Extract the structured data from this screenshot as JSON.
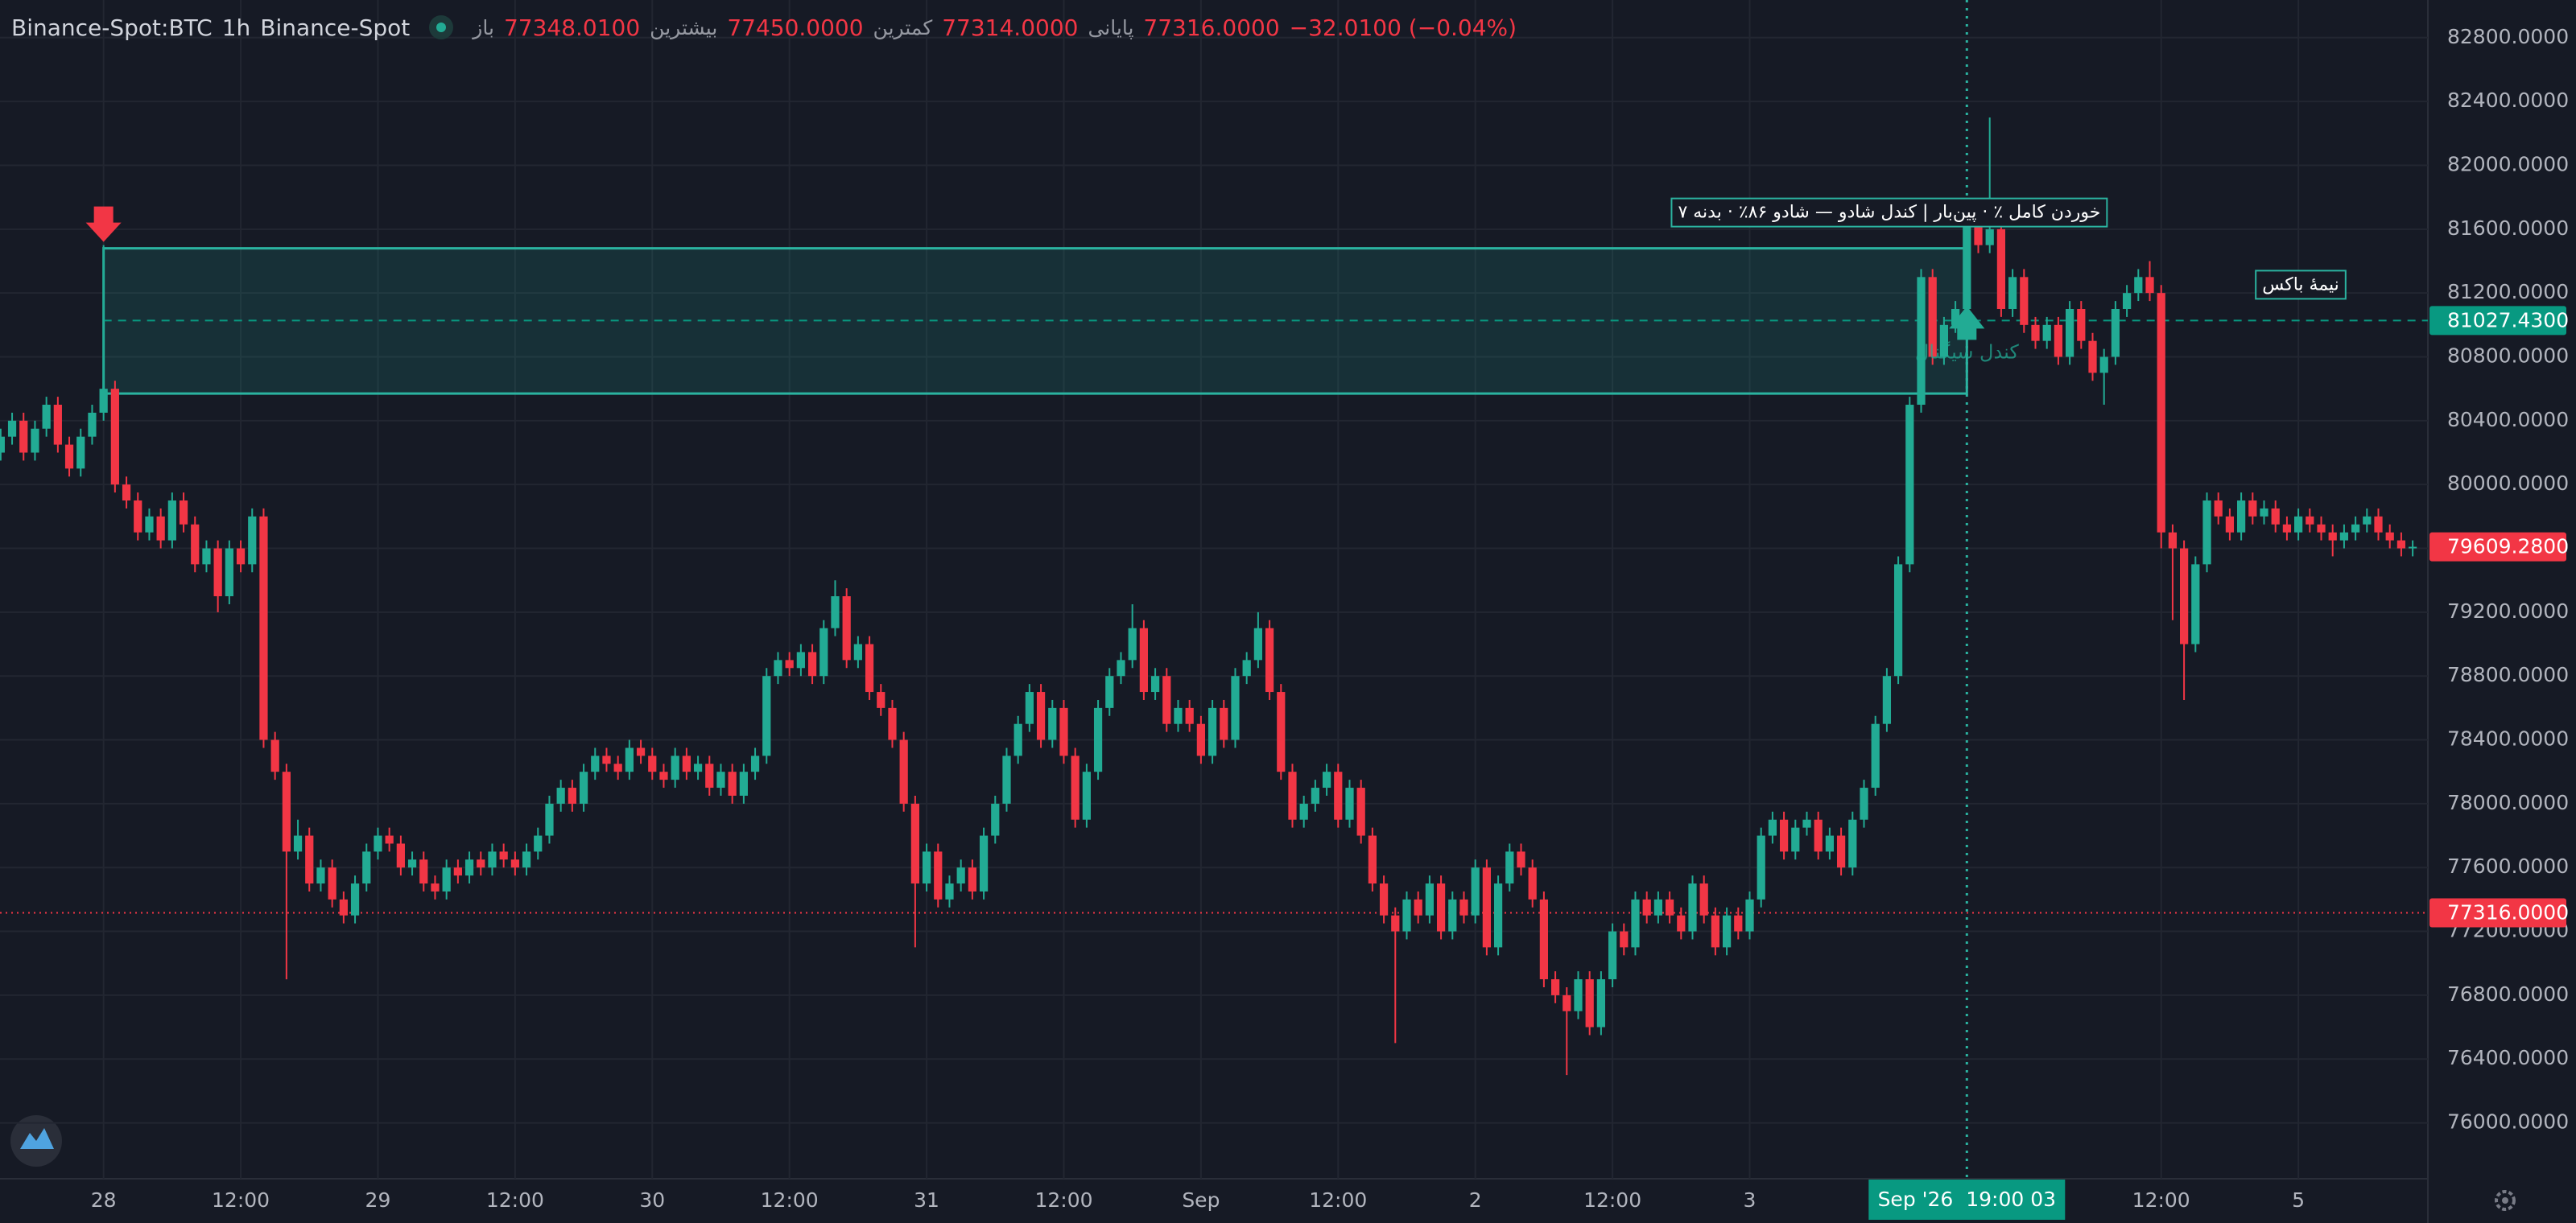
{
  "header": {
    "symbol": "Binance-Spot:BTC",
    "interval": "1h",
    "exchange": "Binance-Spot",
    "open_label": "باز",
    "open": "77348.0100",
    "high_label": "بیشترین",
    "high": "77450.0000",
    "low_label": "کمترین",
    "low": "77314.0000",
    "close_label": "پایانی",
    "close": "77316.0000",
    "change": "−32.0100 (−0.04%)"
  },
  "chart_data": {
    "type": "candlestick",
    "up_color": "#22ab94",
    "down_color": "#f23645",
    "grid": true,
    "ylim": [
      75650,
      83036
    ],
    "yticks": [
      {
        "value": 76000,
        "label": "76000.0000"
      },
      {
        "value": 76400,
        "label": "76400.0000"
      },
      {
        "value": 76800,
        "label": "76800.0000"
      },
      {
        "value": 77200,
        "label": "77200.0000"
      },
      {
        "value": 77600,
        "label": "77600.0000"
      },
      {
        "value": 78000,
        "label": "78000.0000"
      },
      {
        "value": 78400,
        "label": "78400.0000"
      },
      {
        "value": 78800,
        "label": "78800.0000"
      },
      {
        "value": 79200,
        "label": "79200.0000"
      },
      {
        "value": 79600,
        "label": "79600.0000"
      },
      {
        "value": 80000,
        "label": "80000.0000"
      },
      {
        "value": 80400,
        "label": "80400.0000"
      },
      {
        "value": 80800,
        "label": "80800.0000"
      },
      {
        "value": 81200,
        "label": "81200.0000"
      },
      {
        "value": 81600,
        "label": "81600.0000"
      },
      {
        "value": 82000,
        "label": "82000.0000"
      },
      {
        "value": 82400,
        "label": "82400.0000"
      },
      {
        "value": 82800,
        "label": "82800.0000"
      }
    ],
    "xlim": [
      -0.06,
      212.33
    ],
    "xticks": [
      {
        "value": 9,
        "label": "28"
      },
      {
        "value": 21,
        "label": "12:00"
      },
      {
        "value": 33,
        "label": "29"
      },
      {
        "value": 45,
        "label": "12:00"
      },
      {
        "value": 57,
        "label": "30"
      },
      {
        "value": 69,
        "label": "12:00"
      },
      {
        "value": 81,
        "label": "31"
      },
      {
        "value": 93,
        "label": "12:00"
      },
      {
        "value": 105,
        "label": "Sep"
      },
      {
        "value": 117,
        "label": "12:00"
      },
      {
        "value": 129,
        "label": "2"
      },
      {
        "value": 141,
        "label": "12:00"
      },
      {
        "value": 153,
        "label": "3"
      },
      {
        "value": 189,
        "label": "12:00"
      },
      {
        "value": 201,
        "label": "5"
      }
    ],
    "box": {
      "start": 9,
      "end": 172,
      "top": 81480,
      "bottom": 80570,
      "mid": 81027.43,
      "label": "خوردن کامل ٪ · پین‌بار | کندل شادو — شادو ۸۶٪ · بدنه ۷",
      "mid_label": "نیمهٔ باکس",
      "signal_label": "کندل سیگنال"
    },
    "markers": [
      {
        "index": 9,
        "side": "down"
      },
      {
        "index": 172,
        "side": "up"
      }
    ],
    "crosshair": {
      "index": 172,
      "label": "Sep '26  19:00 03"
    },
    "price_labels": [
      {
        "value": 81027.43,
        "label": "81027.4300",
        "color": "#089981",
        "line": "dashed"
      },
      {
        "value": 79609.28,
        "label": "79609.2800",
        "color": "#f23645",
        "line": "none"
      },
      {
        "value": 77316,
        "label": "77316.0000",
        "color": "#f23645",
        "line": "dotted"
      }
    ],
    "ohlc": [
      [
        80200,
        80350,
        80150,
        80300
      ],
      [
        80300,
        80450,
        80250,
        80400
      ],
      [
        80400,
        80450,
        80150,
        80200
      ],
      [
        80200,
        80400,
        80150,
        80350
      ],
      [
        80350,
        80550,
        80300,
        80500
      ],
      [
        80500,
        80550,
        80200,
        80250
      ],
      [
        80250,
        80300,
        80050,
        80100
      ],
      [
        80100,
        80350,
        80050,
        80300
      ],
      [
        80300,
        80500,
        80250,
        80450
      ],
      [
        80450,
        81500,
        80400,
        80600
      ],
      [
        80600,
        80650,
        79950,
        80000
      ],
      [
        80000,
        80050,
        79850,
        79900
      ],
      [
        79900,
        79950,
        79650,
        79700
      ],
      [
        79700,
        79850,
        79650,
        79800
      ],
      [
        79800,
        79850,
        79600,
        79650
      ],
      [
        79650,
        79950,
        79600,
        79900
      ],
      [
        79900,
        79950,
        79700,
        79750
      ],
      [
        79750,
        79800,
        79450,
        79500
      ],
      [
        79500,
        79650,
        79450,
        79600
      ],
      [
        79600,
        79650,
        79200,
        79300
      ],
      [
        79300,
        79650,
        79250,
        79600
      ],
      [
        79600,
        79650,
        79450,
        79500
      ],
      [
        79500,
        79850,
        79450,
        79800
      ],
      [
        79800,
        79850,
        78350,
        78400
      ],
      [
        78400,
        78450,
        78150,
        78200
      ],
      [
        78200,
        78250,
        76900,
        77700
      ],
      [
        77700,
        77900,
        77650,
        77800
      ],
      [
        77800,
        77850,
        77450,
        77500
      ],
      [
        77500,
        77650,
        77450,
        77600
      ],
      [
        77600,
        77650,
        77350,
        77400
      ],
      [
        77400,
        77450,
        77250,
        77300
      ],
      [
        77300,
        77550,
        77250,
        77500
      ],
      [
        77500,
        77750,
        77450,
        77700
      ],
      [
        77700,
        77850,
        77650,
        77800
      ],
      [
        77800,
        77850,
        77700,
        77750
      ],
      [
        77750,
        77800,
        77550,
        77600
      ],
      [
        77600,
        77700,
        77550,
        77650
      ],
      [
        77650,
        77700,
        77450,
        77500
      ],
      [
        77500,
        77550,
        77400,
        77450
      ],
      [
        77450,
        77650,
        77400,
        77600
      ],
      [
        77600,
        77650,
        77500,
        77550
      ],
      [
        77550,
        77700,
        77500,
        77650
      ],
      [
        77650,
        77700,
        77550,
        77600
      ],
      [
        77600,
        77750,
        77550,
        77700
      ],
      [
        77700,
        77750,
        77600,
        77650
      ],
      [
        77650,
        77700,
        77550,
        77600
      ],
      [
        77600,
        77750,
        77550,
        77700
      ],
      [
        77700,
        77850,
        77650,
        77800
      ],
      [
        77800,
        78050,
        77750,
        78000
      ],
      [
        78000,
        78150,
        77950,
        78100
      ],
      [
        78100,
        78150,
        77950,
        78000
      ],
      [
        78000,
        78250,
        77950,
        78200
      ],
      [
        78200,
        78350,
        78150,
        78300
      ],
      [
        78300,
        78350,
        78200,
        78250
      ],
      [
        78250,
        78300,
        78150,
        78200
      ],
      [
        78200,
        78400,
        78150,
        78350
      ],
      [
        78350,
        78400,
        78250,
        78300
      ],
      [
        78300,
        78350,
        78150,
        78200
      ],
      [
        78200,
        78250,
        78100,
        78150
      ],
      [
        78150,
        78350,
        78100,
        78300
      ],
      [
        78300,
        78350,
        78150,
        78200
      ],
      [
        78200,
        78300,
        78150,
        78250
      ],
      [
        78250,
        78300,
        78050,
        78100
      ],
      [
        78100,
        78250,
        78050,
        78200
      ],
      [
        78200,
        78250,
        78000,
        78050
      ],
      [
        78050,
        78250,
        78000,
        78200
      ],
      [
        78200,
        78350,
        78150,
        78300
      ],
      [
        78300,
        78850,
        78250,
        78800
      ],
      [
        78800,
        78950,
        78750,
        78900
      ],
      [
        78900,
        78950,
        78800,
        78850
      ],
      [
        78850,
        79000,
        78800,
        78950
      ],
      [
        78950,
        79000,
        78750,
        78800
      ],
      [
        78800,
        79150,
        78750,
        79100
      ],
      [
        79100,
        79400,
        79050,
        79300
      ],
      [
        79300,
        79350,
        78850,
        78900
      ],
      [
        78900,
        79050,
        78850,
        79000
      ],
      [
        79000,
        79050,
        78650,
        78700
      ],
      [
        78700,
        78750,
        78550,
        78600
      ],
      [
        78600,
        78650,
        78350,
        78400
      ],
      [
        78400,
        78450,
        77950,
        78000
      ],
      [
        78000,
        78050,
        77100,
        77500
      ],
      [
        77500,
        77750,
        77450,
        77700
      ],
      [
        77700,
        77750,
        77350,
        77400
      ],
      [
        77400,
        77550,
        77350,
        77500
      ],
      [
        77500,
        77650,
        77450,
        77600
      ],
      [
        77600,
        77650,
        77400,
        77450
      ],
      [
        77450,
        77850,
        77400,
        77800
      ],
      [
        77800,
        78050,
        77750,
        78000
      ],
      [
        78000,
        78350,
        77950,
        78300
      ],
      [
        78300,
        78550,
        78250,
        78500
      ],
      [
        78500,
        78750,
        78450,
        78700
      ],
      [
        78700,
        78750,
        78350,
        78400
      ],
      [
        78400,
        78650,
        78350,
        78600
      ],
      [
        78600,
        78650,
        78250,
        78300
      ],
      [
        78300,
        78350,
        77850,
        77900
      ],
      [
        77900,
        78250,
        77850,
        78200
      ],
      [
        78200,
        78650,
        78150,
        78600
      ],
      [
        78600,
        78850,
        78550,
        78800
      ],
      [
        78800,
        78950,
        78750,
        78900
      ],
      [
        78900,
        79250,
        78850,
        79100
      ],
      [
        79100,
        79150,
        78650,
        78700
      ],
      [
        78700,
        78850,
        78650,
        78800
      ],
      [
        78800,
        78850,
        78450,
        78500
      ],
      [
        78500,
        78650,
        78450,
        78600
      ],
      [
        78600,
        78650,
        78450,
        78500
      ],
      [
        78500,
        78550,
        78250,
        78300
      ],
      [
        78300,
        78650,
        78250,
        78600
      ],
      [
        78600,
        78650,
        78350,
        78400
      ],
      [
        78400,
        78850,
        78350,
        78800
      ],
      [
        78800,
        78950,
        78750,
        78900
      ],
      [
        78900,
        79200,
        78850,
        79100
      ],
      [
        79100,
        79150,
        78650,
        78700
      ],
      [
        78700,
        78750,
        78150,
        78200
      ],
      [
        78200,
        78250,
        77850,
        77900
      ],
      [
        77900,
        78050,
        77850,
        78000
      ],
      [
        78000,
        78150,
        77950,
        78100
      ],
      [
        78100,
        78250,
        78050,
        78200
      ],
      [
        78200,
        78250,
        77850,
        77900
      ],
      [
        77900,
        78150,
        77850,
        78100
      ],
      [
        78100,
        78150,
        77750,
        77800
      ],
      [
        77800,
        77850,
        77450,
        77500
      ],
      [
        77500,
        77550,
        77250,
        77300
      ],
      [
        77300,
        77350,
        76500,
        77200
      ],
      [
        77200,
        77450,
        77150,
        77400
      ],
      [
        77400,
        77450,
        77250,
        77300
      ],
      [
        77300,
        77550,
        77250,
        77500
      ],
      [
        77500,
        77550,
        77150,
        77200
      ],
      [
        77200,
        77450,
        77150,
        77400
      ],
      [
        77400,
        77450,
        77250,
        77300
      ],
      [
        77300,
        77650,
        77250,
        77600
      ],
      [
        77600,
        77650,
        77050,
        77100
      ],
      [
        77100,
        77550,
        77050,
        77500
      ],
      [
        77500,
        77750,
        77450,
        77700
      ],
      [
        77700,
        77750,
        77550,
        77600
      ],
      [
        77600,
        77650,
        77350,
        77400
      ],
      [
        77400,
        77450,
        76850,
        76900
      ],
      [
        76900,
        76950,
        76750,
        76800
      ],
      [
        76800,
        76850,
        76300,
        76700
      ],
      [
        76700,
        76950,
        76650,
        76900
      ],
      [
        76900,
        76950,
        76550,
        76600
      ],
      [
        76600,
        76950,
        76550,
        76900
      ],
      [
        76900,
        77250,
        76850,
        77200
      ],
      [
        77200,
        77250,
        77050,
        77100
      ],
      [
        77100,
        77450,
        77050,
        77400
      ],
      [
        77400,
        77450,
        77250,
        77300
      ],
      [
        77300,
        77450,
        77250,
        77400
      ],
      [
        77400,
        77450,
        77250,
        77300
      ],
      [
        77300,
        77350,
        77150,
        77200
      ],
      [
        77200,
        77550,
        77150,
        77500
      ],
      [
        77500,
        77550,
        77250,
        77300
      ],
      [
        77300,
        77350,
        77050,
        77100
      ],
      [
        77100,
        77350,
        77050,
        77300
      ],
      [
        77300,
        77350,
        77150,
        77200
      ],
      [
        77200,
        77450,
        77150,
        77400
      ],
      [
        77400,
        77850,
        77350,
        77800
      ],
      [
        77800,
        77950,
        77750,
        77900
      ],
      [
        77900,
        77950,
        77650,
        77700
      ],
      [
        77700,
        77900,
        77650,
        77850
      ],
      [
        77850,
        77950,
        77800,
        77900
      ],
      [
        77900,
        77950,
        77650,
        77700
      ],
      [
        77700,
        77850,
        77650,
        77800
      ],
      [
        77800,
        77850,
        77550,
        77600
      ],
      [
        77600,
        77950,
        77550,
        77900
      ],
      [
        77900,
        78150,
        77850,
        78100
      ],
      [
        78100,
        78550,
        78050,
        78500
      ],
      [
        78500,
        78850,
        78450,
        78800
      ],
      [
        78800,
        79550,
        78750,
        79500
      ],
      [
        79500,
        80550,
        79450,
        80500
      ],
      [
        80500,
        81350,
        80450,
        81300
      ],
      [
        81300,
        81350,
        80750,
        80800
      ],
      [
        80800,
        81050,
        80750,
        81000
      ],
      [
        81000,
        81150,
        80950,
        81100
      ],
      [
        81100,
        81750,
        81050,
        81700
      ],
      [
        81700,
        81750,
        81450,
        81500
      ],
      [
        81500,
        82300,
        81450,
        81600
      ],
      [
        81600,
        81650,
        81050,
        81100
      ],
      [
        81100,
        81350,
        81050,
        81300
      ],
      [
        81300,
        81350,
        80950,
        81000
      ],
      [
        81000,
        81050,
        80850,
        80900
      ],
      [
        80900,
        81050,
        80850,
        81000
      ],
      [
        81000,
        81050,
        80750,
        80800
      ],
      [
        80800,
        81150,
        80750,
        81100
      ],
      [
        81100,
        81150,
        80850,
        80900
      ],
      [
        80900,
        80950,
        80650,
        80700
      ],
      [
        80700,
        80850,
        80500,
        80800
      ],
      [
        80800,
        81150,
        80750,
        81100
      ],
      [
        81100,
        81250,
        81050,
        81200
      ],
      [
        81200,
        81350,
        81150,
        81300
      ],
      [
        81300,
        81400,
        81150,
        81200
      ],
      [
        81200,
        81250,
        79600,
        79700
      ],
      [
        79700,
        79750,
        79150,
        79600
      ],
      [
        79600,
        79650,
        78650,
        79000
      ],
      [
        79000,
        79550,
        78950,
        79500
      ],
      [
        79500,
        79950,
        79450,
        79900
      ],
      [
        79900,
        79950,
        79750,
        79800
      ],
      [
        79800,
        79850,
        79650,
        79700
      ],
      [
        79700,
        79950,
        79650,
        79900
      ],
      [
        79900,
        79950,
        79750,
        79800
      ],
      [
        79800,
        79900,
        79750,
        79850
      ],
      [
        79850,
        79900,
        79700,
        79750
      ],
      [
        79750,
        79800,
        79650,
        79700
      ],
      [
        79700,
        79850,
        79650,
        79800
      ],
      [
        79800,
        79850,
        79700,
        79750
      ],
      [
        79750,
        79800,
        79650,
        79700
      ],
      [
        79700,
        79750,
        79550,
        79650
      ],
      [
        79650,
        79750,
        79600,
        79700
      ],
      [
        79700,
        79800,
        79650,
        79750
      ],
      [
        79750,
        79850,
        79700,
        79800
      ],
      [
        79800,
        79850,
        79650,
        79700
      ],
      [
        79700,
        79750,
        79600,
        79650
      ],
      [
        79650,
        79700,
        79550,
        79600
      ],
      [
        79600,
        79650,
        79550,
        79610
      ]
    ]
  }
}
